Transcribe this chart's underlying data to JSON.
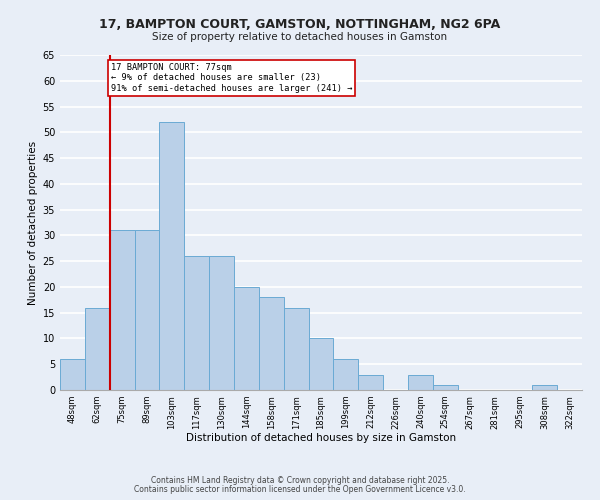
{
  "title1": "17, BAMPTON COURT, GAMSTON, NOTTINGHAM, NG2 6PA",
  "title2": "Size of property relative to detached houses in Gamston",
  "xlabel": "Distribution of detached houses by size in Gamston",
  "ylabel": "Number of detached properties",
  "bin_labels": [
    "48sqm",
    "62sqm",
    "75sqm",
    "89sqm",
    "103sqm",
    "117sqm",
    "130sqm",
    "144sqm",
    "158sqm",
    "171sqm",
    "185sqm",
    "199sqm",
    "212sqm",
    "226sqm",
    "240sqm",
    "254sqm",
    "267sqm",
    "281sqm",
    "295sqm",
    "308sqm",
    "322sqm"
  ],
  "bar_values": [
    6,
    16,
    31,
    31,
    52,
    26,
    26,
    20,
    18,
    16,
    10,
    6,
    3,
    0,
    3,
    1,
    0,
    0,
    0,
    1,
    0
  ],
  "bar_color": "#bad0e8",
  "bar_edge_color": "#6aaad4",
  "bg_color": "#e8eef7",
  "grid_color": "#ffffff",
  "vline_x_index": 2,
  "vline_color": "#cc0000",
  "annotation_text": "17 BAMPTON COURT: 77sqm\n← 9% of detached houses are smaller (23)\n91% of semi-detached houses are larger (241) →",
  "annotation_box_color": "#ffffff",
  "annotation_box_edge_color": "#cc0000",
  "ylim": [
    0,
    65
  ],
  "yticks": [
    0,
    5,
    10,
    15,
    20,
    25,
    30,
    35,
    40,
    45,
    50,
    55,
    60,
    65
  ],
  "footer1": "Contains HM Land Registry data © Crown copyright and database right 2025.",
  "footer2": "Contains public sector information licensed under the Open Government Licence v3.0."
}
